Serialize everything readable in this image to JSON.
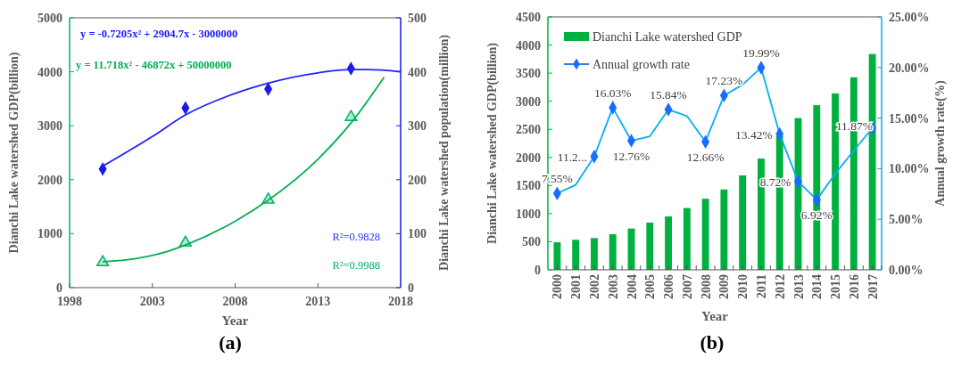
{
  "chart_data": [
    {
      "type": "scatter",
      "xlabel": "Year",
      "ylabel": "Dianchi Lake watershed GDP(billion)",
      "y2label": "Dianchi Lake watershed population(million)",
      "xlim": [
        1998,
        2018
      ],
      "xticks": [
        1998,
        2003,
        2008,
        2013,
        2018
      ],
      "ylim": [
        0,
        5000
      ],
      "yticks": [
        0,
        1000,
        2000,
        3000,
        4000,
        5000
      ],
      "y2lim": [
        0,
        500
      ],
      "y2ticks": [
        0,
        100,
        200,
        300,
        400,
        500
      ],
      "series": [
        {
          "marker": "triangle",
          "color": "#00b26b",
          "x": [
            2000,
            2005,
            2010,
            2015
          ],
          "values": [
            470,
            830,
            1630,
            3160
          ]
        },
        {
          "type": "line",
          "color": "#00b050",
          "x": [
            2000,
            2002,
            2004,
            2005,
            2008,
            2010,
            2013,
            2015,
            2017
          ],
          "values": [
            480,
            540,
            680,
            790,
            1230,
            1620,
            2380,
            3050,
            3900
          ]
        },
        {
          "marker": "diamond",
          "axis": "y2",
          "color": "#1a1aee",
          "x": [
            2000,
            2005,
            2010,
            2015
          ],
          "values": [
            220,
            333,
            368,
            406
          ]
        },
        {
          "type": "line",
          "axis": "y2",
          "color": "#2020ff",
          "x": [
            2000,
            2003,
            2005,
            2008,
            2010,
            2013,
            2015,
            2016,
            2018
          ],
          "values": [
            225,
            280,
            320,
            360,
            379,
            398,
            404,
            404,
            400
          ]
        }
      ],
      "annotations": [
        "y = -0.7205x² + 2904.7x - 3000000",
        "y = 11.718x² - 46872x + 50000000",
        "R²=0.9828",
        "R²=0.9988",
        "(a)"
      ]
    },
    {
      "type": "bar",
      "xlabel": "Year",
      "ylabel": "Dianchi Lake watershed GDP(billion)",
      "y2label": "Annual growth rate(%)",
      "categories": [
        "2000",
        "2001",
        "2002",
        "2003",
        "2004",
        "2005",
        "2006",
        "2007",
        "2008",
        "2009",
        "2010",
        "2011",
        "2012",
        "2013",
        "2014",
        "2015",
        "2016",
        "2017"
      ],
      "ylim": [
        0,
        4500
      ],
      "yticks": [
        0,
        500,
        1000,
        1500,
        2000,
        2500,
        3000,
        3500,
        4000,
        4500
      ],
      "y2lim": [
        0,
        25
      ],
      "y2ticks": [
        {
          "value": 0,
          "label": "0.00%"
        },
        {
          "value": 5,
          "label": "5.00%"
        },
        {
          "value": 10,
          "label": "10.00%"
        },
        {
          "value": 15,
          "label": "15.00%"
        },
        {
          "value": 20,
          "label": "20.00%"
        },
        {
          "value": 25,
          "label": "25.00%"
        }
      ],
      "legend": "top left",
      "series": [
        {
          "name": "Dianchi Lake watershed GDP",
          "color": "#00b140",
          "values": [
            490,
            535,
            565,
            635,
            735,
            840,
            950,
            1100,
            1265,
            1430,
            1680,
            1980,
            2380,
            2700,
            2930,
            3140,
            3425,
            3840
          ]
        },
        {
          "type": "line",
          "axis": "y2",
          "color": "#00b0f0",
          "values": [
            7.55,
            8.4,
            11.2,
            16.03,
            12.76,
            13.2,
            15.84,
            15.2,
            12.66,
            17.23,
            18.3,
            19.99,
            13.42,
            8.72,
            6.92,
            9.5,
            11.8,
            14.0
          ]
        },
        {
          "type": "scatter",
          "name": "Annual growth rate",
          "axis": "y2",
          "marker": "diamond",
          "color": "#1a6cff",
          "values": [
            7.55,
            null,
            11.2,
            16.03,
            12.76,
            null,
            15.84,
            null,
            12.66,
            17.23,
            null,
            19.99,
            13.42,
            8.72,
            6.92,
            null,
            null,
            14.0
          ],
          "value_labels": [
            "7.55%",
            null,
            "11.2...",
            "16.03%",
            "12.76%",
            null,
            "15.84%",
            null,
            "12.66%",
            "17.23%",
            null,
            "19.99%",
            "13.42%",
            "8.72%",
            "6.92%",
            null,
            null,
            null
          ]
        }
      ],
      "annotations": [
        "11.87%",
        "(b)"
      ]
    }
  ]
}
